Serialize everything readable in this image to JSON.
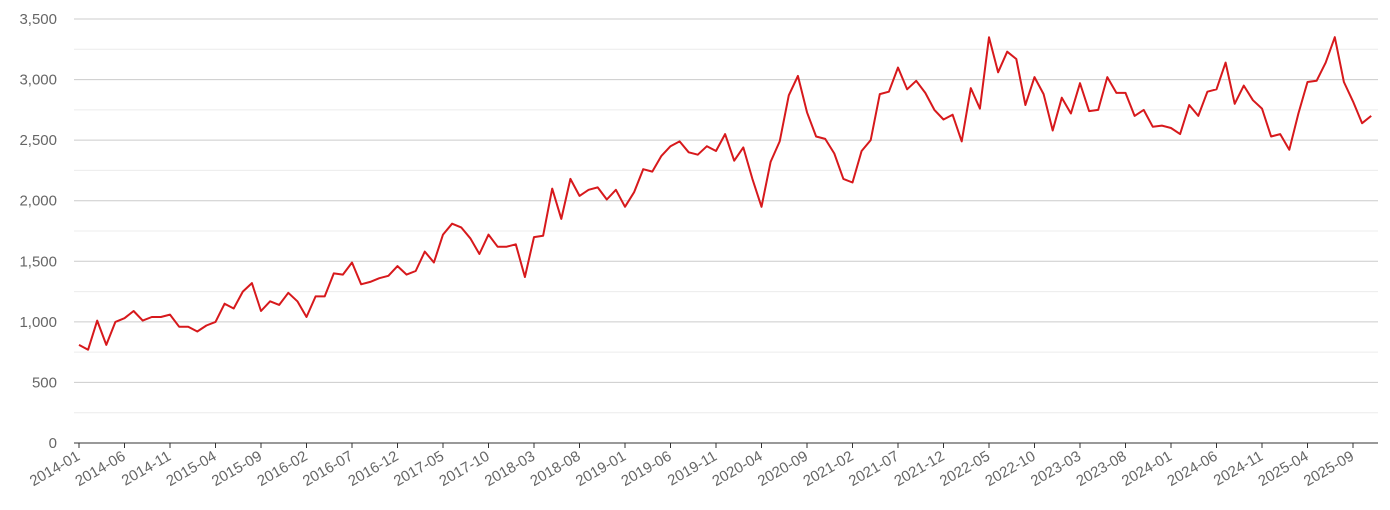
{
  "chart_data": {
    "type": "line",
    "title": "",
    "xlabel": "",
    "ylabel": "",
    "ylim": [
      0,
      3500
    ],
    "y_ticks": [
      "0",
      "500",
      "1,000",
      "1,500",
      "2,000",
      "2,500",
      "3,000",
      "3,500"
    ],
    "x_tick_labels": [
      "2014-01",
      "2014-06",
      "2014-11",
      "2015-04",
      "2015-09",
      "2016-02",
      "2016-07",
      "2016-12",
      "2017-05",
      "2017-10",
      "2018-03",
      "2018-08",
      "2019-01",
      "2019-06",
      "2019-11",
      "2020-04",
      "2020-09",
      "2021-02",
      "2021-07",
      "2021-12",
      "2022-05",
      "2022-10",
      "2023-03",
      "2023-08",
      "2024-01",
      "2024-06",
      "2024-11",
      "2025-04",
      "2025-09"
    ],
    "grid": true,
    "legend": "none",
    "line_color": "#d7191c",
    "series": [
      {
        "x_start": "2014-01",
        "frequency": "monthly",
        "values": [
          810,
          770,
          1010,
          810,
          1000,
          1030,
          1090,
          1010,
          1040,
          1040,
          1060,
          960,
          960,
          920,
          970,
          1000,
          1150,
          1110,
          1250,
          1320,
          1090,
          1170,
          1140,
          1240,
          1170,
          1040,
          1210,
          1210,
          1400,
          1390,
          1490,
          1310,
          1330,
          1360,
          1380,
          1460,
          1390,
          1420,
          1580,
          1490,
          1720,
          1810,
          1780,
          1690,
          1560,
          1720,
          1620,
          1620,
          1640,
          1370,
          1700,
          1710,
          2100,
          1850,
          2180,
          2040,
          2090,
          2110,
          2010,
          2090,
          1950,
          2070,
          2260,
          2240,
          2370,
          2450,
          2490,
          2400,
          2380,
          2450,
          2410,
          2550,
          2330,
          2440,
          2180,
          1950,
          2320,
          2490,
          2870,
          3030,
          2730,
          2530,
          2510,
          2390,
          2180,
          2150,
          2410,
          2500,
          2880,
          2900,
          3100,
          2920,
          2990,
          2890,
          2750,
          2670,
          2710,
          2490,
          2930,
          2760,
          3350,
          3060,
          3230,
          3170,
          2790,
          3020,
          2880,
          2580,
          2850,
          2720,
          2970,
          2740,
          2750,
          3020,
          2890,
          2890,
          2700,
          2750,
          2610,
          2620,
          2600,
          2550,
          2790,
          2700,
          2900,
          2920,
          3140,
          2800,
          2950,
          2830,
          2760,
          2530,
          2550,
          2420,
          2720,
          2980,
          2990,
          3140,
          3350,
          2980,
          2820,
          2640,
          2700
        ]
      }
    ]
  }
}
